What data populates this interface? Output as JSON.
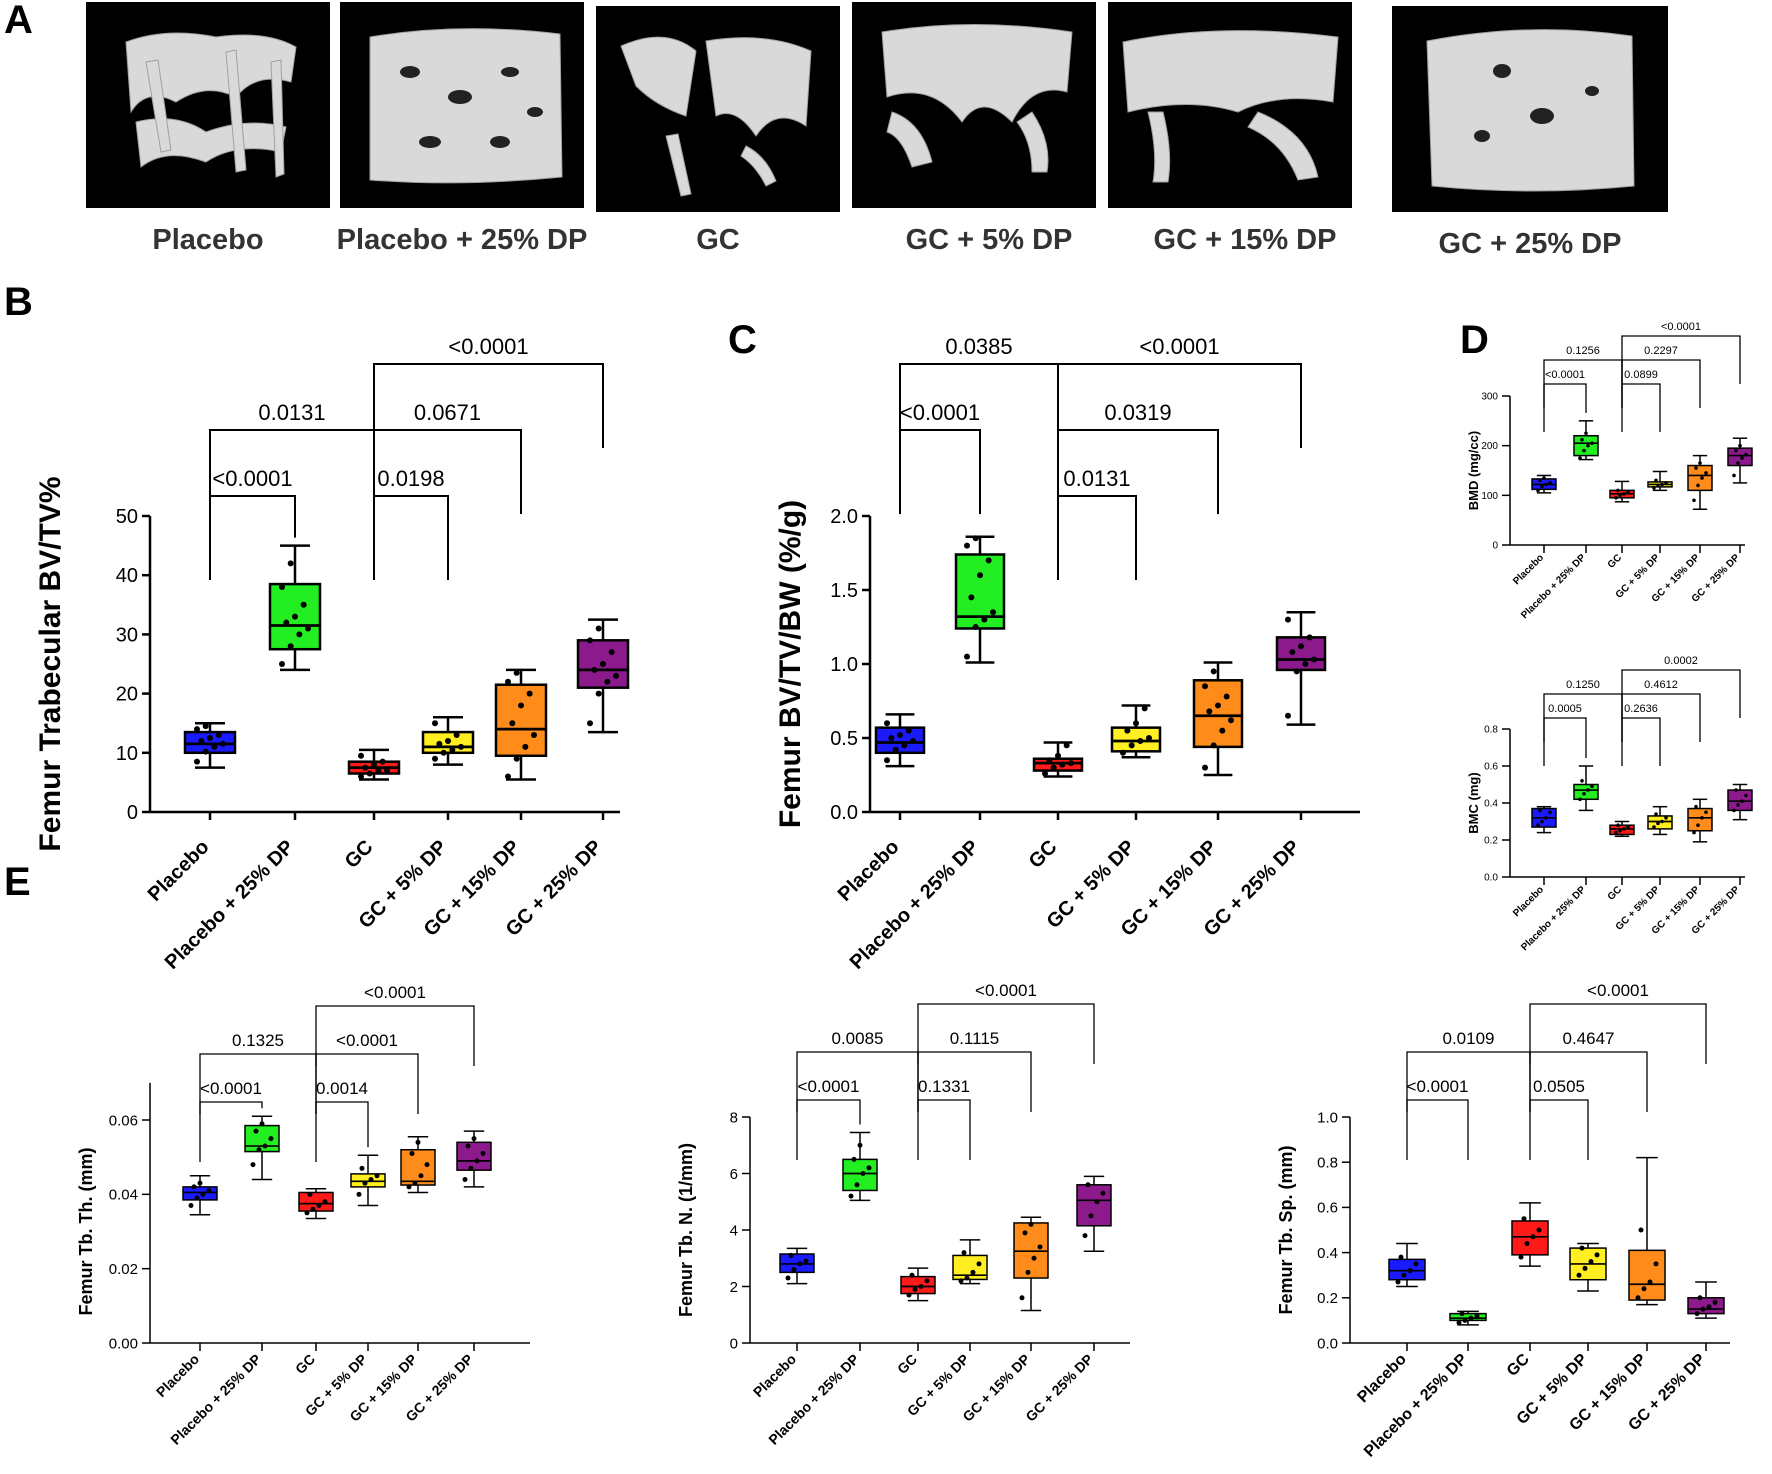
{
  "figure": {
    "panel_letters": [
      "A",
      "B",
      "C",
      "D",
      "E"
    ]
  },
  "colors": {
    "Placebo": "#1a1aff",
    "Placebo + 25% DP": "#22ee22",
    "GC": "#ff1a1a",
    "GC + 5% DP": "#ffee22",
    "GC + 15% DP": "#ff8c1a",
    "GC + 25% DP": "#8c1a8c"
  },
  "panelA": {
    "labels": [
      "Placebo",
      "Placebo + 25% DP",
      "GC",
      "GC + 5% DP",
      "GC + 15% DP",
      "GC + 25% DP"
    ]
  },
  "chart_data": [
    {
      "id": "B",
      "type": "box",
      "ylabel": "Femur Trabecular BV/TV%",
      "ylim": [
        0,
        50
      ],
      "yticks": [
        "0",
        "10",
        "20",
        "30",
        "40",
        "50"
      ],
      "categories": [
        "Placebo",
        "Placebo + 25% DP",
        "GC",
        "GC + 5% DP",
        "GC + 15% DP",
        "GC + 25% DP"
      ],
      "boxes": [
        {
          "min": 7.5,
          "q1": 10,
          "median": 11.5,
          "q3": 13.5,
          "max": 15
        },
        {
          "min": 24,
          "q1": 27.5,
          "median": 31.5,
          "q3": 38.5,
          "max": 45
        },
        {
          "min": 5.5,
          "q1": 6.5,
          "median": 7.5,
          "q3": 8.5,
          "max": 10.5
        },
        {
          "min": 8,
          "q1": 10,
          "median": 11,
          "q3": 13.5,
          "max": 16
        },
        {
          "min": 5.5,
          "q1": 9.5,
          "median": 14,
          "q3": 21.5,
          "max": 24
        },
        {
          "min": 13.5,
          "q1": 21,
          "median": 24,
          "q3": 29,
          "max": 32.5
        }
      ],
      "points": [
        [
          8.5,
          10.2,
          11,
          11.5,
          12,
          12.5,
          13,
          14,
          14.5
        ],
        [
          25,
          28,
          30,
          31,
          32,
          33,
          35,
          38,
          42
        ],
        [
          6,
          6.5,
          7,
          7,
          7.5,
          8,
          8.5,
          9.5
        ],
        [
          9,
          10,
          10.5,
          11,
          11.5,
          12,
          13,
          15
        ],
        [
          6,
          9,
          11,
          13,
          15,
          18,
          20,
          22,
          23.5
        ],
        [
          15,
          20,
          22,
          23,
          24,
          25,
          27,
          29,
          31
        ]
      ],
      "annotations": [
        {
          "from": 0,
          "to": 1,
          "level": 0,
          "label": "<0.0001"
        },
        {
          "from": 0,
          "to": 2,
          "level": 1,
          "label": "0.0131"
        },
        {
          "from": 2,
          "to": 3,
          "level": 0,
          "label": "0.0198"
        },
        {
          "from": 2,
          "to": 4,
          "level": 1,
          "label": "0.0671"
        },
        {
          "from": 2,
          "to": 5,
          "level": 2,
          "label": "<0.0001"
        }
      ]
    },
    {
      "id": "C",
      "type": "box",
      "ylabel": "Femur BV/TV/BW (%/g)",
      "ylim": [
        0,
        2
      ],
      "yticks": [
        "0.0",
        "0.5",
        "1.0",
        "1.5",
        "2.0"
      ],
      "categories": [
        "Placebo",
        "Placebo + 25% DP",
        "GC",
        "GC + 5% DP",
        "GC + 15% DP",
        "GC + 25% DP"
      ],
      "boxes": [
        {
          "min": 0.31,
          "q1": 0.4,
          "median": 0.47,
          "q3": 0.57,
          "max": 0.66
        },
        {
          "min": 1.01,
          "q1": 1.24,
          "median": 1.32,
          "q3": 1.74,
          "max": 1.86
        },
        {
          "min": 0.24,
          "q1": 0.28,
          "median": 0.33,
          "q3": 0.36,
          "max": 0.47
        },
        {
          "min": 0.37,
          "q1": 0.41,
          "median": 0.48,
          "q3": 0.57,
          "max": 0.72
        },
        {
          "min": 0.25,
          "q1": 0.44,
          "median": 0.65,
          "q3": 0.89,
          "max": 1.01
        },
        {
          "min": 0.59,
          "q1": 0.96,
          "median": 1.03,
          "q3": 1.18,
          "max": 1.35
        }
      ],
      "points": [
        [
          0.35,
          0.42,
          0.45,
          0.48,
          0.5,
          0.52,
          0.55,
          0.6
        ],
        [
          1.05,
          1.25,
          1.3,
          1.35,
          1.45,
          1.6,
          1.7,
          1.8,
          1.85
        ],
        [
          0.26,
          0.3,
          0.32,
          0.33,
          0.35,
          0.38,
          0.45
        ],
        [
          0.4,
          0.45,
          0.48,
          0.5,
          0.55,
          0.6,
          0.7
        ],
        [
          0.3,
          0.45,
          0.55,
          0.62,
          0.68,
          0.72,
          0.78,
          0.85,
          0.95
        ],
        [
          0.65,
          0.95,
          1.0,
          1.03,
          1.08,
          1.12,
          1.18,
          1.3
        ]
      ],
      "annotations": [
        {
          "from": 0,
          "to": 1,
          "level": 0,
          "label": "<0.0001"
        },
        {
          "from": 0,
          "to": 2,
          "level": 1,
          "label": "0.0385"
        },
        {
          "from": 2,
          "to": 3,
          "level": -1,
          "label": "0.0131"
        },
        {
          "from": 2,
          "to": 4,
          "level": 0,
          "label": "0.0319"
        },
        {
          "from": 2,
          "to": 5,
          "level": 1,
          "label": "<0.0001"
        }
      ]
    },
    {
      "id": "D1",
      "type": "box",
      "ylabel": "BMD (mg/cc)",
      "ylim": [
        0,
        300
      ],
      "yticks": [
        "0",
        "100",
        "200",
        "300"
      ],
      "categories": [
        "Placebo",
        "Placebo + 25% DP",
        "GC",
        "GC + 5% DP",
        "GC + 15% DP",
        "GC + 25% DP"
      ],
      "boxes": [
        {
          "min": 105,
          "q1": 112,
          "median": 122,
          "q3": 133,
          "max": 140
        },
        {
          "min": 172,
          "q1": 180,
          "median": 205,
          "q3": 220,
          "max": 250
        },
        {
          "min": 87,
          "q1": 95,
          "median": 103,
          "q3": 110,
          "max": 128
        },
        {
          "min": 110,
          "q1": 117,
          "median": 122,
          "q3": 127,
          "max": 148
        },
        {
          "min": 72,
          "q1": 110,
          "median": 140,
          "q3": 160,
          "max": 180
        },
        {
          "min": 125,
          "q1": 160,
          "median": 180,
          "q3": 195,
          "max": 215
        }
      ],
      "points": [
        [
          110,
          118,
          122,
          125,
          130,
          135
        ],
        [
          175,
          190,
          200,
          205,
          212,
          225
        ],
        [
          95,
          100,
          103,
          106,
          110
        ],
        [
          115,
          120,
          122,
          125,
          130
        ],
        [
          90,
          120,
          135,
          145,
          155,
          165
        ],
        [
          140,
          165,
          175,
          182,
          190,
          200
        ]
      ],
      "annotations": [
        {
          "from": 0,
          "to": 1,
          "level": 0,
          "label": "<0.0001"
        },
        {
          "from": 0,
          "to": 2,
          "level": 1,
          "label": "0.1256"
        },
        {
          "from": 2,
          "to": 3,
          "level": 0,
          "label": "0.0899"
        },
        {
          "from": 2,
          "to": 4,
          "level": 1,
          "label": "0.2297"
        },
        {
          "from": 2,
          "to": 5,
          "level": 2,
          "label": "<0.0001"
        }
      ]
    },
    {
      "id": "D2",
      "type": "box",
      "ylabel": "BMC (mg)",
      "ylim": [
        0,
        0.8
      ],
      "yticks": [
        "0.0",
        "0.2",
        "0.4",
        "0.6",
        "0.8"
      ],
      "categories": [
        "Placebo",
        "Placebo + 25% DP",
        "GC",
        "GC + 5% DP",
        "GC + 15% DP",
        "GC + 25% DP"
      ],
      "boxes": [
        {
          "min": 0.24,
          "q1": 0.27,
          "median": 0.32,
          "q3": 0.37,
          "max": 0.38
        },
        {
          "min": 0.36,
          "q1": 0.42,
          "median": 0.47,
          "q3": 0.5,
          "max": 0.6
        },
        {
          "min": 0.22,
          "q1": 0.23,
          "median": 0.26,
          "q3": 0.28,
          "max": 0.3
        },
        {
          "min": 0.23,
          "q1": 0.26,
          "median": 0.3,
          "q3": 0.33,
          "max": 0.38
        },
        {
          "min": 0.19,
          "q1": 0.25,
          "median": 0.32,
          "q3": 0.37,
          "max": 0.42
        },
        {
          "min": 0.31,
          "q1": 0.36,
          "median": 0.41,
          "q3": 0.47,
          "max": 0.5
        }
      ],
      "points": [
        [
          0.28,
          0.3,
          0.32,
          0.35,
          0.36
        ],
        [
          0.42,
          0.45,
          0.47,
          0.49,
          0.52
        ],
        [
          0.24,
          0.25,
          0.26,
          0.27,
          0.28
        ],
        [
          0.27,
          0.29,
          0.3,
          0.32,
          0.34
        ],
        [
          0.24,
          0.28,
          0.32,
          0.35,
          0.38
        ],
        [
          0.36,
          0.39,
          0.41,
          0.44,
          0.47
        ]
      ],
      "annotations": [
        {
          "from": 0,
          "to": 1,
          "level": 0,
          "label": "0.0005"
        },
        {
          "from": 0,
          "to": 2,
          "level": 1,
          "label": "0.1250"
        },
        {
          "from": 2,
          "to": 3,
          "level": 0,
          "label": "0.2636"
        },
        {
          "from": 2,
          "to": 4,
          "level": 1,
          "label": "0.4612"
        },
        {
          "from": 2,
          "to": 5,
          "level": 2,
          "label": "0.0002"
        }
      ]
    },
    {
      "id": "E1",
      "type": "box",
      "ylabel": "Femur Tb. Th. (mm)",
      "ylim": [
        0,
        0.07
      ],
      "yticks": [
        "0.00",
        "0.02",
        "0.04",
        "0.06"
      ],
      "tick_values": [
        0,
        0.02,
        0.04,
        0.06
      ],
      "categories": [
        "Placebo",
        "Placebo + 25% DP",
        "GC",
        "GC + 5% DP",
        "GC + 15% DP",
        "GC + 25% DP"
      ],
      "boxes": [
        {
          "min": 0.0345,
          "q1": 0.0385,
          "median": 0.0405,
          "q3": 0.042,
          "max": 0.045
        },
        {
          "min": 0.044,
          "q1": 0.0515,
          "median": 0.053,
          "q3": 0.0585,
          "max": 0.061
        },
        {
          "min": 0.0335,
          "q1": 0.0355,
          "median": 0.0375,
          "q3": 0.0405,
          "max": 0.0415
        },
        {
          "min": 0.037,
          "q1": 0.042,
          "median": 0.0435,
          "q3": 0.0455,
          "max": 0.0505
        },
        {
          "min": 0.0405,
          "q1": 0.0425,
          "median": 0.0435,
          "q3": 0.052,
          "max": 0.0555
        },
        {
          "min": 0.042,
          "q1": 0.0465,
          "median": 0.049,
          "q3": 0.054,
          "max": 0.057
        }
      ],
      "points": [
        [
          0.037,
          0.039,
          0.04,
          0.041,
          0.042,
          0.043
        ],
        [
          0.048,
          0.052,
          0.053,
          0.055,
          0.057,
          0.059
        ],
        [
          0.035,
          0.036,
          0.037,
          0.038,
          0.04
        ],
        [
          0.04,
          0.043,
          0.044,
          0.045,
          0.047
        ],
        [
          0.042,
          0.043,
          0.045,
          0.048,
          0.051,
          0.054
        ],
        [
          0.044,
          0.047,
          0.049,
          0.051,
          0.053,
          0.055
        ]
      ],
      "annotations": [
        {
          "from": 0,
          "to": 1,
          "level": 0,
          "label": "<0.0001"
        },
        {
          "from": 0,
          "to": 2,
          "level": 1,
          "label": "0.1325"
        },
        {
          "from": 2,
          "to": 3,
          "level": 0,
          "label": "0.0014"
        },
        {
          "from": 2,
          "to": 4,
          "level": 1,
          "label": "<0.0001"
        },
        {
          "from": 2,
          "to": 5,
          "level": 2,
          "label": "<0.0001"
        }
      ]
    },
    {
      "id": "E2",
      "type": "box",
      "ylabel": "Femur Tb. N.  (1/mm)",
      "ylim": [
        0,
        8
      ],
      "yticks": [
        "0",
        "2",
        "4",
        "6",
        "8"
      ],
      "categories": [
        "Placebo",
        "Placebo + 25% DP",
        "GC",
        "GC + 5% DP",
        "GC + 15% DP",
        "GC + 25% DP"
      ],
      "boxes": [
        {
          "min": 2.1,
          "q1": 2.5,
          "median": 2.8,
          "q3": 3.15,
          "max": 3.35
        },
        {
          "min": 5.05,
          "q1": 5.4,
          "median": 6.0,
          "q3": 6.5,
          "max": 7.45
        },
        {
          "min": 1.5,
          "q1": 1.75,
          "median": 2.0,
          "q3": 2.35,
          "max": 2.65
        },
        {
          "min": 2.1,
          "q1": 2.25,
          "median": 2.4,
          "q3": 3.1,
          "max": 3.65
        },
        {
          "min": 1.15,
          "q1": 2.3,
          "median": 3.25,
          "q3": 4.25,
          "max": 4.45
        },
        {
          "min": 3.25,
          "q1": 4.15,
          "median": 5.05,
          "q3": 5.6,
          "max": 5.9
        }
      ],
      "points": [
        [
          2.3,
          2.6,
          2.8,
          2.9,
          3.1
        ],
        [
          5.2,
          5.6,
          6.0,
          6.2,
          6.5,
          7.0
        ],
        [
          1.7,
          1.9,
          2.0,
          2.2,
          2.4
        ],
        [
          2.2,
          2.3,
          2.5,
          2.8,
          3.2
        ],
        [
          1.6,
          2.5,
          3.0,
          3.4,
          3.9,
          4.2
        ],
        [
          3.8,
          4.5,
          5.0,
          5.3,
          5.6
        ]
      ],
      "annotations": [
        {
          "from": 0,
          "to": 1,
          "level": 0,
          "label": "<0.0001"
        },
        {
          "from": 0,
          "to": 2,
          "level": 1,
          "label": "0.0085"
        },
        {
          "from": 2,
          "to": 3,
          "level": 0,
          "label": "0.1331"
        },
        {
          "from": 2,
          "to": 4,
          "level": 1,
          "label": "0.1115"
        },
        {
          "from": 2,
          "to": 5,
          "level": 2,
          "label": "<0.0001"
        }
      ]
    },
    {
      "id": "E3",
      "type": "box",
      "ylabel": "Femur Tb. Sp. (mm)",
      "ylim": [
        0,
        1.0
      ],
      "yticks": [
        "0.0",
        "0.2",
        "0.4",
        "0.6",
        "0.8",
        "1.0"
      ],
      "categories": [
        "Placebo",
        "Placebo + 25% DP",
        "GC",
        "GC + 5% DP",
        "GC + 15% DP",
        "GC + 25% DP"
      ],
      "boxes": [
        {
          "min": 0.25,
          "q1": 0.28,
          "median": 0.32,
          "q3": 0.37,
          "max": 0.44
        },
        {
          "min": 0.08,
          "q1": 0.1,
          "median": 0.11,
          "q3": 0.13,
          "max": 0.14
        },
        {
          "min": 0.34,
          "q1": 0.39,
          "median": 0.47,
          "q3": 0.54,
          "max": 0.62
        },
        {
          "min": 0.23,
          "q1": 0.28,
          "median": 0.35,
          "q3": 0.42,
          "max": 0.44
        },
        {
          "min": 0.17,
          "q1": 0.19,
          "median": 0.26,
          "q3": 0.41,
          "max": 0.82
        },
        {
          "min": 0.11,
          "q1": 0.13,
          "median": 0.15,
          "q3": 0.2,
          "max": 0.27
        }
      ],
      "points": [
        [
          0.27,
          0.3,
          0.32,
          0.35,
          0.38
        ],
        [
          0.09,
          0.1,
          0.11,
          0.12,
          0.13
        ],
        [
          0.38,
          0.44,
          0.47,
          0.5,
          0.55
        ],
        [
          0.3,
          0.33,
          0.36,
          0.39,
          0.42
        ],
        [
          0.2,
          0.24,
          0.27,
          0.35,
          0.5
        ],
        [
          0.13,
          0.15,
          0.16,
          0.18,
          0.2
        ]
      ],
      "annotations": [
        {
          "from": 0,
          "to": 1,
          "level": 0,
          "label": "<0.0001"
        },
        {
          "from": 0,
          "to": 2,
          "level": 1,
          "label": "0.0109"
        },
        {
          "from": 2,
          "to": 3,
          "level": 0,
          "label": "0.0505"
        },
        {
          "from": 2,
          "to": 4,
          "level": 1,
          "label": "0.4647"
        },
        {
          "from": 2,
          "to": 5,
          "level": 2,
          "label": "<0.0001"
        }
      ]
    }
  ]
}
